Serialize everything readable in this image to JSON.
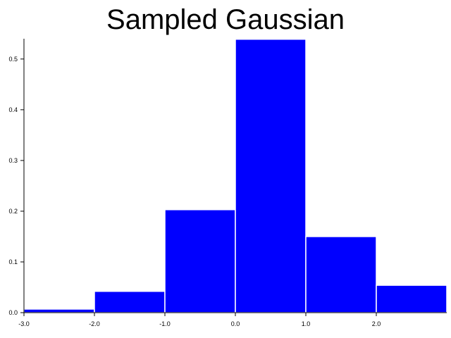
{
  "chart_data": {
    "type": "bar",
    "title": "Sampled Gaussian",
    "xlabel": "",
    "ylabel": "",
    "bins": [
      {
        "x0": -3.0,
        "x1": -2.0,
        "value": 0.007
      },
      {
        "x0": -2.0,
        "x1": -1.0,
        "value": 0.042
      },
      {
        "x0": -1.0,
        "x1": 0.0,
        "value": 0.203
      },
      {
        "x0": 0.0,
        "x1": 1.0,
        "value": 0.539
      },
      {
        "x0": 1.0,
        "x1": 2.0,
        "value": 0.15
      },
      {
        "x0": 2.0,
        "x1": 3.0,
        "value": 0.054
      }
    ],
    "xlim": [
      -3.0,
      3.0
    ],
    "ylim": [
      0.0,
      0.54
    ],
    "x_ticks": [
      {
        "value": -3.0,
        "label": "-3.0"
      },
      {
        "value": -2.0,
        "label": "-2.0"
      },
      {
        "value": -1.0,
        "label": "-1.0"
      },
      {
        "value": 0.0,
        "label": "0.0"
      },
      {
        "value": 1.0,
        "label": "1.0"
      },
      {
        "value": 2.0,
        "label": "2.0"
      }
    ],
    "y_ticks": [
      {
        "value": 0.0,
        "label": "0.0"
      },
      {
        "value": 0.1,
        "label": "0.1"
      },
      {
        "value": 0.2,
        "label": "0.2"
      },
      {
        "value": 0.3,
        "label": "0.3"
      },
      {
        "value": 0.4,
        "label": "0.4"
      },
      {
        "value": 0.5,
        "label": "0.5"
      }
    ],
    "grid": false,
    "bar_color": "#0000ff",
    "bar_edge_color": "#ffffff"
  }
}
